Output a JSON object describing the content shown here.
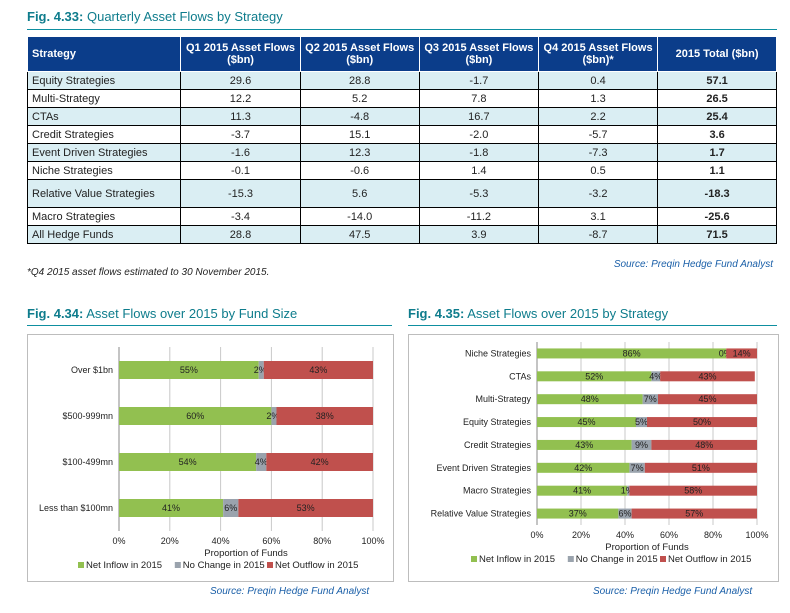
{
  "fig433": {
    "label": "Fig. 4.33:",
    "title": "Quarterly Asset Flows by Strategy",
    "headers": [
      "Strategy",
      "Q1 2015 Asset Flows ($bn)",
      "Q2 2015 Asset Flows ($bn)",
      "Q3 2015 Asset Flows ($bn)",
      "Q4 2015 Asset Flows ($bn)*",
      "2015 Total ($bn)"
    ],
    "rows": [
      [
        "Equity Strategies",
        "29.6",
        "28.8",
        "-1.7",
        "0.4",
        "57.1"
      ],
      [
        "Multi-Strategy",
        "12.2",
        "5.2",
        "7.8",
        "1.3",
        "26.5"
      ],
      [
        "CTAs",
        "11.3",
        "-4.8",
        "16.7",
        "2.2",
        "25.4"
      ],
      [
        "Credit Strategies",
        "-3.7",
        "15.1",
        "-2.0",
        "-5.7",
        "3.6"
      ],
      [
        "Event Driven Strategies",
        "-1.6",
        "12.3",
        "-1.8",
        "-7.3",
        "1.7"
      ],
      [
        "Niche Strategies",
        "-0.1",
        "-0.6",
        "1.4",
        "0.5",
        "1.1"
      ],
      [
        "Relative Value Strategies",
        "-15.3",
        "5.6",
        "-5.3",
        "-3.2",
        "-18.3"
      ],
      [
        "Macro Strategies",
        "-3.4",
        "-14.0",
        "-11.2",
        "3.1",
        "-25.6"
      ],
      [
        "All Hedge Funds",
        "28.8",
        "47.5",
        "3.9",
        "-8.7",
        "71.5"
      ]
    ],
    "footnote": "*Q4 2015 asset flows estimated to 30 November 2015.",
    "source": "Source: Preqin Hedge Fund Analyst"
  },
  "fig434": {
    "label": "Fig. 4.34:",
    "title": "Asset Flows over 2015 by Fund Size",
    "source": "Source: Preqin Hedge Fund Analyst"
  },
  "fig435": {
    "label": "Fig. 4.35:",
    "title": "Asset Flows over 2015 by Strategy",
    "source": "Source: Preqin Hedge Fund Analyst"
  },
  "colors": {
    "inflow": "#92c050",
    "nochange": "#9aa3ad",
    "outflow": "#c0504d",
    "header": "#0b3d8a",
    "accent": "#0e7c8c"
  },
  "chart_data": [
    {
      "type": "bar",
      "orientation": "horizontal",
      "stacked": "percent",
      "categories": [
        "Over $1bn",
        "$500-999mn",
        "$100-499mn",
        "Less than $100mn"
      ],
      "series": [
        {
          "name": "Net Inflow in 2015",
          "values": [
            55,
            60,
            54,
            41
          ]
        },
        {
          "name": "No Change in 2015",
          "values": [
            2,
            2,
            4,
            6
          ]
        },
        {
          "name": "Net Outflow in 2015",
          "values": [
            43,
            38,
            42,
            53
          ]
        }
      ],
      "xlabel": "Proportion of Funds",
      "ylabel": "",
      "xlim": [
        0,
        100
      ],
      "xticks": [
        "0%",
        "20%",
        "40%",
        "60%",
        "80%",
        "100%"
      ],
      "legend": "bottom"
    },
    {
      "type": "bar",
      "orientation": "horizontal",
      "stacked": "percent",
      "categories": [
        "Niche Strategies",
        "CTAs",
        "Multi-Strategy",
        "Equity Strategies",
        "Credit Strategies",
        "Event Driven Strategies",
        "Macro Strategies",
        "Relative Value Strategies"
      ],
      "series": [
        {
          "name": "Net Inflow in 2015",
          "values": [
            86,
            52,
            48,
            45,
            43,
            42,
            41,
            37
          ]
        },
        {
          "name": "No Change in 2015",
          "values": [
            0,
            4,
            7,
            5,
            9,
            7,
            1,
            6
          ]
        },
        {
          "name": "Net Outflow in 2015",
          "values": [
            14,
            43,
            45,
            50,
            48,
            51,
            58,
            57
          ]
        }
      ],
      "xlabel": "Proportion of Funds",
      "ylabel": "",
      "xlim": [
        0,
        100
      ],
      "xticks": [
        "0%",
        "20%",
        "40%",
        "60%",
        "80%",
        "100%"
      ],
      "legend": "bottom"
    }
  ]
}
